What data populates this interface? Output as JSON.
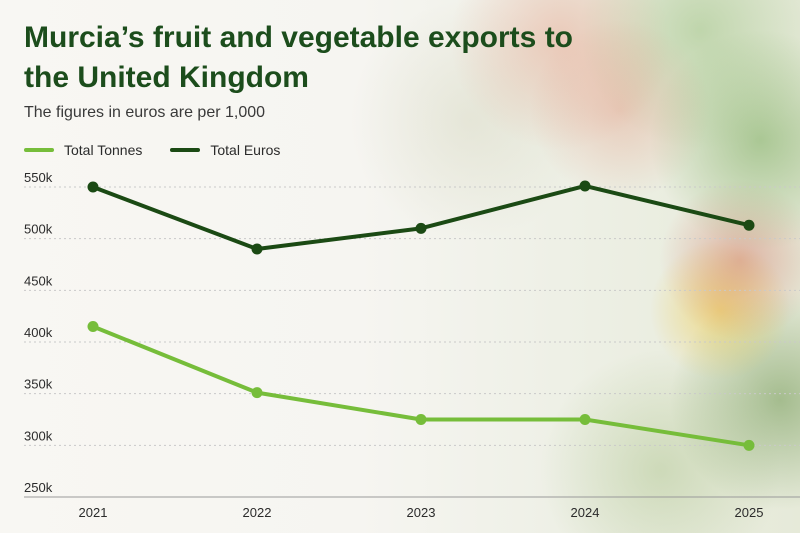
{
  "title": "Murcia’s fruit and vegetable exports to the United Kingdom",
  "subtitle": "The figures in euros are per 1,000",
  "colors": {
    "tonnes": "#76bd3a",
    "euros": "#1b4a14",
    "grid": "#c9c9c9",
    "axis": "#9a9a9a"
  },
  "chart_data": {
    "type": "line",
    "x": [
      "2021",
      "2022",
      "2023",
      "2024",
      "2025"
    ],
    "ylim": [
      250000,
      550000
    ],
    "yticks": [
      250000,
      300000,
      350000,
      400000,
      450000,
      500000,
      550000
    ],
    "ytick_labels": [
      "250k",
      "300k",
      "350k",
      "400k",
      "450k",
      "500k",
      "550k"
    ],
    "grid": true,
    "legend_position": "top-left",
    "series": [
      {
        "name": "Total Tonnes",
        "values": [
          415000,
          351000,
          325000,
          325000,
          300000
        ],
        "color": "#76bd3a"
      },
      {
        "name": "Total Euros",
        "values": [
          550000,
          490000,
          510000,
          551000,
          513000
        ],
        "color": "#1b4a14"
      }
    ]
  }
}
